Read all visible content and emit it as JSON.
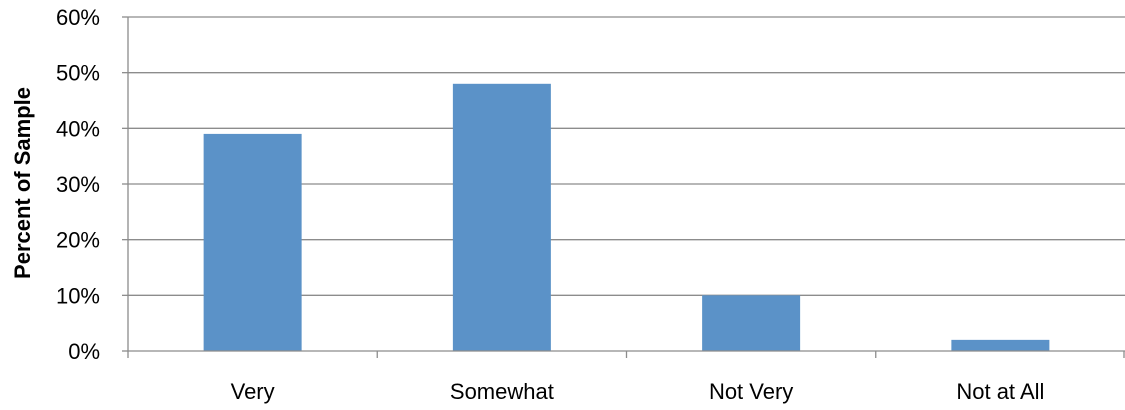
{
  "chart_data": {
    "type": "bar",
    "title": "",
    "xlabel": "",
    "ylabel": "Percent of Sample",
    "categories": [
      "Very",
      "Somewhat",
      "Not Very",
      "Not at All"
    ],
    "values": [
      39,
      48,
      10,
      2
    ],
    "ylim": [
      0,
      60
    ],
    "y_ticks": [
      "0%",
      "10%",
      "20%",
      "30%",
      "40%",
      "50%",
      "60%"
    ],
    "grid": true,
    "legend": "none",
    "bar_color": "#5b92c8",
    "gridline_color": "#8c8c8c"
  }
}
